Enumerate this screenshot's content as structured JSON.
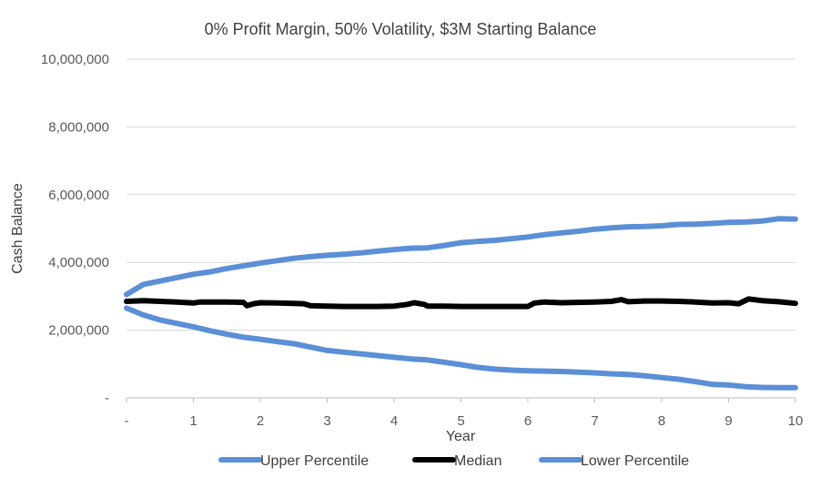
{
  "chart_data": {
    "type": "line",
    "title": "0% Profit Margin, 50% Volatility, $3M Starting Balance",
    "xlabel": "Year",
    "ylabel": "Cash Balance",
    "xlim": [
      0,
      10
    ],
    "ylim": [
      0,
      10000000
    ],
    "x_ticks": [
      "-",
      "1",
      "2",
      "3",
      "4",
      "5",
      "6",
      "7",
      "8",
      "9",
      "10"
    ],
    "y_ticks": [
      "-",
      "2,000,000",
      "4,000,000",
      "6,000,000",
      "8,000,000",
      "10,000,000"
    ],
    "grid": "horizontal",
    "legend_position": "bottom",
    "series": [
      {
        "name": "Upper Percentile",
        "color": "#5b8fd6",
        "x": [
          0,
          0.25,
          0.5,
          0.75,
          1,
          1.25,
          1.5,
          1.75,
          2,
          2.25,
          2.5,
          2.75,
          3,
          3.25,
          3.5,
          3.75,
          4,
          4.25,
          4.5,
          4.75,
          5,
          5.25,
          5.5,
          5.75,
          6,
          6.25,
          6.5,
          6.75,
          7,
          7.25,
          7.5,
          7.75,
          8,
          8.25,
          8.5,
          8.75,
          9,
          9.25,
          9.5,
          9.75,
          10
        ],
        "values": [
          3050000,
          3350000,
          3450000,
          3550000,
          3650000,
          3720000,
          3820000,
          3900000,
          3980000,
          4050000,
          4120000,
          4170000,
          4210000,
          4240000,
          4280000,
          4330000,
          4380000,
          4420000,
          4430000,
          4500000,
          4580000,
          4620000,
          4650000,
          4700000,
          4750000,
          4820000,
          4870000,
          4920000,
          4980000,
          5020000,
          5050000,
          5060000,
          5080000,
          5120000,
          5130000,
          5150000,
          5180000,
          5190000,
          5220000,
          5290000,
          5280000
        ]
      },
      {
        "name": "Median",
        "color": "#000000",
        "x": [
          0,
          0.25,
          0.5,
          0.75,
          1,
          1.1,
          1.25,
          1.5,
          1.75,
          1.8,
          1.9,
          2,
          2.25,
          2.5,
          2.65,
          2.75,
          3,
          3.25,
          3.5,
          3.75,
          4,
          4.2,
          4.3,
          4.45,
          4.5,
          4.75,
          5,
          5.25,
          5.5,
          5.75,
          6,
          6.1,
          6.25,
          6.5,
          6.75,
          7,
          7.25,
          7.4,
          7.5,
          7.75,
          8,
          8.25,
          8.5,
          8.75,
          9,
          9.15,
          9.3,
          9.5,
          9.75,
          10
        ],
        "values": [
          2850000,
          2870000,
          2850000,
          2830000,
          2800000,
          2830000,
          2830000,
          2830000,
          2820000,
          2720000,
          2780000,
          2810000,
          2800000,
          2790000,
          2780000,
          2720000,
          2710000,
          2700000,
          2700000,
          2700000,
          2710000,
          2760000,
          2810000,
          2760000,
          2710000,
          2710000,
          2700000,
          2700000,
          2700000,
          2700000,
          2700000,
          2800000,
          2830000,
          2810000,
          2820000,
          2830000,
          2850000,
          2900000,
          2840000,
          2860000,
          2860000,
          2850000,
          2830000,
          2800000,
          2810000,
          2780000,
          2920000,
          2870000,
          2840000,
          2790000
        ]
      },
      {
        "name": "Lower Percentile",
        "color": "#5b8fd6",
        "x": [
          0,
          0.25,
          0.5,
          0.75,
          1,
          1.25,
          1.5,
          1.75,
          2,
          2.25,
          2.5,
          2.75,
          3,
          3.25,
          3.5,
          3.75,
          4,
          4.25,
          4.5,
          4.75,
          5,
          5.25,
          5.5,
          5.75,
          6,
          6.25,
          6.5,
          6.75,
          7,
          7.25,
          7.5,
          7.75,
          8,
          8.25,
          8.5,
          8.75,
          9,
          9.25,
          9.5,
          9.75,
          10
        ],
        "values": [
          2650000,
          2450000,
          2300000,
          2200000,
          2100000,
          1980000,
          1880000,
          1790000,
          1730000,
          1660000,
          1600000,
          1500000,
          1400000,
          1350000,
          1300000,
          1250000,
          1200000,
          1150000,
          1120000,
          1050000,
          980000,
          900000,
          850000,
          820000,
          800000,
          790000,
          780000,
          760000,
          740000,
          710000,
          690000,
          650000,
          600000,
          550000,
          480000,
          400000,
          380000,
          330000,
          310000,
          300000,
          300000
        ]
      }
    ]
  }
}
